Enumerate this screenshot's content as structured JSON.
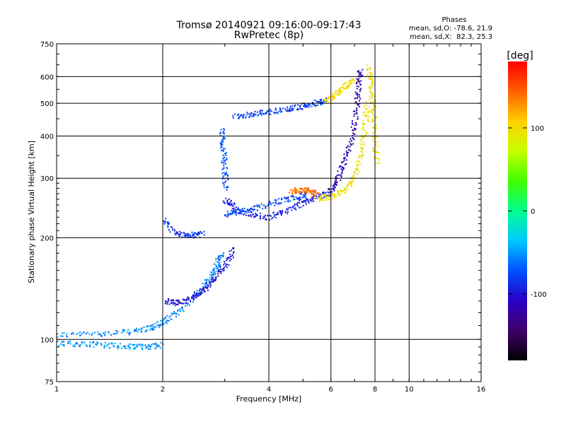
{
  "chart_data": {
    "type": "scatter",
    "title": "Tromsø 20140921 09:16:00-09:17:43",
    "subtitle": "RwPretec (8p)",
    "xlabel": "Frequency [MHz]",
    "ylabel": "Stationary phase Virtual Height [km]",
    "x_scale": "log",
    "y_scale": "log",
    "xlim": [
      1,
      16
    ],
    "ylim": [
      75,
      750
    ],
    "x_ticks": [
      "1",
      "2",
      "4",
      "6",
      "8",
      "10",
      "16"
    ],
    "y_ticks": [
      "75",
      "100",
      "200",
      "300",
      "400",
      "500",
      "600",
      "750"
    ],
    "grid": true,
    "info": {
      "heading": "Phases",
      "o_line": "mean, sd,O: -78.6, 21.9",
      "x_line": "mean, sd,X:  82.3, 25.3"
    },
    "colorbar": {
      "label": "[deg]",
      "range": [
        -180,
        180
      ],
      "ticks": [
        "100",
        "0",
        "-100"
      ],
      "colors": [
        "#000000",
        "#40006a",
        "#2a00c8",
        "#0050ff",
        "#00c8ff",
        "#00ff90",
        "#40ff00",
        "#c8ff00",
        "#ffd000",
        "#ff6000",
        "#ff0000"
      ]
    },
    "traces": [
      {
        "x": [
          1.0,
          1.3,
          1.6,
          1.85,
          2.0,
          2.2,
          2.5,
          2.7,
          2.85,
          2.95
        ],
        "y": [
          103,
          104,
          105,
          108,
          112,
          120,
          135,
          150,
          165,
          180
        ],
        "phase": -55
      },
      {
        "x": [
          1.0,
          1.2,
          1.4,
          1.6,
          1.8,
          2.0
        ],
        "y": [
          97,
          97,
          96,
          95,
          95,
          96
        ],
        "phase": -50
      },
      {
        "x": [
          2.05,
          2.2,
          2.4,
          2.6,
          2.8,
          3.0,
          3.2
        ],
        "y": [
          130,
          128,
          132,
          140,
          150,
          165,
          185
        ],
        "phase": -100
      },
      {
        "x": [
          2.0,
          2.2,
          2.4,
          2.6
        ],
        "y": [
          226,
          205,
          203,
          205
        ],
        "phase": -85
      },
      {
        "x": [
          2.95,
          2.97,
          3.0,
          3.02
        ],
        "y": [
          420,
          370,
          320,
          280
        ],
        "phase": -70
      },
      {
        "x": [
          3.0,
          3.2,
          3.5,
          4.0,
          4.5,
          5.0,
          5.5,
          6.0
        ],
        "y": [
          260,
          245,
          235,
          230,
          240,
          255,
          265,
          270
        ],
        "phase": -95
      },
      {
        "x": [
          3.0,
          3.3,
          3.7,
          4.2,
          4.7,
          5.2
        ],
        "y": [
          235,
          238,
          245,
          255,
          262,
          270
        ],
        "phase": -75
      },
      {
        "x": [
          4.6,
          4.9,
          5.2,
          5.5
        ],
        "y": [
          272,
          278,
          276,
          270
        ],
        "phase": 140
      },
      {
        "x": [
          5.5,
          6.0,
          6.5,
          7.0,
          7.3,
          7.5,
          7.6
        ],
        "y": [
          260,
          265,
          275,
          300,
          350,
          420,
          500
        ],
        "phase": 95
      },
      {
        "x": [
          6.0,
          6.3,
          6.6,
          6.9,
          7.1,
          7.2,
          7.25
        ],
        "y": [
          275,
          300,
          340,
          400,
          480,
          560,
          630
        ],
        "phase": -115
      },
      {
        "x": [
          3.2,
          3.6,
          4.0,
          4.5,
          5.0,
          5.4,
          5.8
        ],
        "y": [
          455,
          465,
          470,
          480,
          490,
          500,
          510
        ],
        "phase": -80
      },
      {
        "x": [
          5.8,
          6.2,
          6.6,
          7.0
        ],
        "y": [
          510,
          530,
          560,
          590
        ],
        "phase": 100
      },
      {
        "x": [
          7.7,
          7.8,
          7.9,
          8.0,
          8.1
        ],
        "y": [
          640,
          560,
          480,
          400,
          330
        ],
        "phase": 100
      }
    ]
  }
}
